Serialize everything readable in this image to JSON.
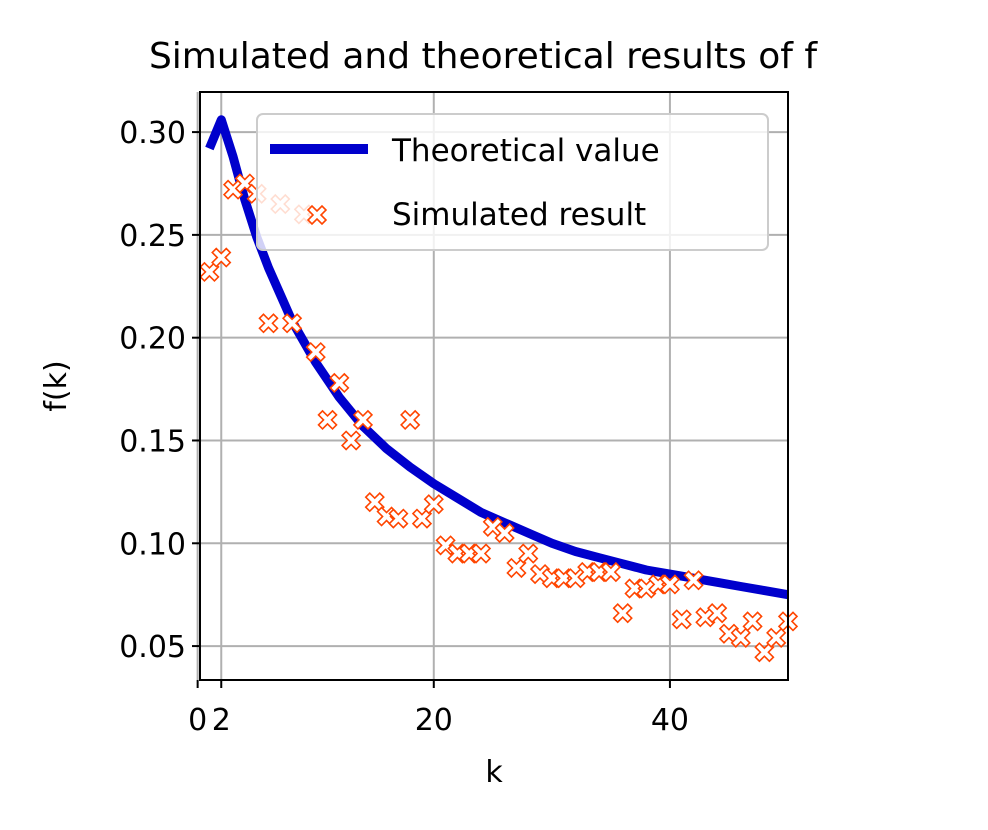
{
  "chart_data": {
    "type": "line",
    "title": "Simulated and theoretical results of f",
    "xlabel": "k",
    "ylabel": "f(k)",
    "xlim": [
      0.2,
      50.0
    ],
    "ylim": [
      0.0335,
      0.3195
    ],
    "x_ticks": [
      {
        "value": 0,
        "label": "0"
      },
      {
        "value": 2,
        "label": "2"
      },
      {
        "value": 20,
        "label": "20"
      },
      {
        "value": 40,
        "label": "40"
      }
    ],
    "y_ticks": [
      {
        "value": 0.05,
        "label": "0.05"
      },
      {
        "value": 0.1,
        "label": "0.10"
      },
      {
        "value": 0.15,
        "label": "0.15"
      },
      {
        "value": 0.2,
        "label": "0.20"
      },
      {
        "value": 0.25,
        "label": "0.25"
      },
      {
        "value": 0.3,
        "label": "0.30"
      }
    ],
    "grid": true,
    "legend_position": "top-right",
    "series": [
      {
        "name": "Theoretical value",
        "kind": "line",
        "color": "#0000cc",
        "x": [
          1,
          2,
          3,
          4,
          5,
          6,
          7,
          8,
          10,
          12,
          14,
          16,
          18,
          20,
          22,
          24,
          26,
          28,
          30,
          32,
          34,
          36,
          38,
          40,
          42,
          44,
          46,
          48,
          50
        ],
        "y": [
          0.292,
          0.306,
          0.288,
          0.267,
          0.249,
          0.234,
          0.221,
          0.208,
          0.188,
          0.171,
          0.157,
          0.146,
          0.137,
          0.129,
          0.122,
          0.115,
          0.11,
          0.105,
          0.1,
          0.096,
          0.093,
          0.09,
          0.087,
          0.085,
          0.083,
          0.081,
          0.079,
          0.077,
          0.075
        ]
      },
      {
        "name": "Simulated result",
        "kind": "scatter",
        "marker": "x-cross",
        "color": "#ff4500",
        "x": [
          1,
          2,
          3,
          4,
          5,
          6,
          7,
          8,
          9,
          10,
          11,
          12,
          13,
          14,
          15,
          16,
          17,
          18,
          19,
          20,
          21,
          22,
          23,
          24,
          25,
          26,
          27,
          28,
          29,
          30,
          31,
          32,
          33,
          34,
          35,
          36,
          37,
          38,
          39,
          40,
          41,
          42,
          43,
          44,
          45,
          46,
          47,
          48,
          49,
          50
        ],
        "y": [
          0.232,
          0.239,
          0.272,
          0.275,
          0.27,
          0.207,
          0.265,
          0.207,
          0.26,
          0.193,
          0.16,
          0.178,
          0.15,
          0.16,
          0.12,
          0.113,
          0.112,
          0.16,
          0.112,
          0.119,
          0.099,
          0.095,
          0.095,
          0.095,
          0.108,
          0.105,
          0.088,
          0.095,
          0.085,
          0.083,
          0.083,
          0.083,
          0.086,
          0.086,
          0.086,
          0.066,
          0.078,
          0.078,
          0.08,
          0.08,
          0.063,
          0.082,
          0.064,
          0.066,
          0.056,
          0.054,
          0.062,
          0.047,
          0.054,
          0.062
        ]
      }
    ]
  }
}
